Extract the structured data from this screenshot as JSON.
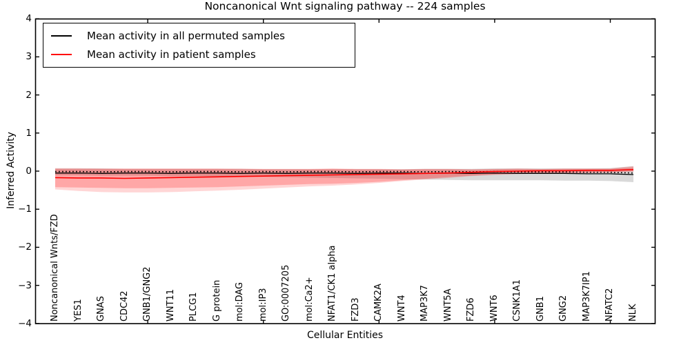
{
  "chart_data": {
    "type": "line",
    "title": "Noncanonical Wnt signaling pathway -- 224 samples",
    "xlabel": "Cellular Entities",
    "ylabel": "Inferred Activity",
    "ylim": [
      -4,
      4
    ],
    "grid": false,
    "legend_position": "upper left",
    "yticks": [
      4,
      3,
      2,
      1,
      0,
      -1,
      -2,
      -3,
      -4
    ],
    "yticklabels": [
      "4",
      "3",
      "2",
      "1",
      "0",
      "−1",
      "−2",
      "−3",
      "−4"
    ],
    "xtick_major_indices": [
      4,
      9,
      14,
      19,
      24
    ],
    "categories": [
      "Noncanonical Wnts/FZD",
      "YES1",
      "GNAS",
      "CDC42",
      "GNB1/GNG2",
      "WNT11",
      "PLCG1",
      "G protein",
      "mol:DAG",
      "mol:IP3",
      "GO:0007205",
      "mol:Ca2+",
      "NFAT1/CK1 alpha",
      "FZD3",
      "CAMK2A",
      "WNT4",
      "MAP3K7",
      "WNT5A",
      "FZD6",
      "WNT6",
      "CSNK1A1",
      "GNB1",
      "GNG2",
      "MAP3K7IP1",
      "NFATC2",
      "NLK"
    ],
    "legend": [
      {
        "label": "Mean activity in all permuted samples",
        "color": "#000000"
      },
      {
        "label": "Mean activity in patient samples",
        "color": "#ff0000"
      }
    ],
    "series": [
      {
        "name": "Mean activity in all permuted samples",
        "color": "#000000",
        "values": [
          -0.05,
          -0.05,
          -0.06,
          -0.05,
          -0.05,
          -0.06,
          -0.05,
          -0.05,
          -0.06,
          -0.05,
          -0.06,
          -0.05,
          -0.05,
          -0.06,
          -0.05,
          -0.05,
          -0.06,
          -0.05,
          -0.06,
          -0.05,
          -0.06,
          -0.06,
          -0.06,
          -0.07,
          -0.07,
          -0.09
        ]
      },
      {
        "name": "Mean activity in patient samples",
        "color": "#ff0000",
        "values": [
          -0.17,
          -0.18,
          -0.18,
          -0.19,
          -0.18,
          -0.17,
          -0.16,
          -0.15,
          -0.14,
          -0.13,
          -0.12,
          -0.11,
          -0.1,
          -0.09,
          -0.08,
          -0.07,
          -0.06,
          -0.05,
          -0.03,
          -0.01,
          0.0,
          0.01,
          0.01,
          0.02,
          0.02,
          0.04
        ]
      }
    ],
    "bands": [
      {
        "name": "permuted-std-band",
        "color": "rgba(0,0,0,0.15)",
        "upper": [
          0.07,
          0.07,
          0.07,
          0.06,
          0.06,
          0.06,
          0.06,
          0.06,
          0.06,
          0.05,
          0.05,
          0.05,
          0.05,
          0.05,
          0.05,
          0.05,
          0.06,
          0.06,
          0.06,
          0.07,
          0.07,
          0.07,
          0.07,
          0.07,
          0.08,
          0.13
        ],
        "lower": [
          -0.11,
          -0.11,
          -0.12,
          -0.12,
          -0.12,
          -0.13,
          -0.13,
          -0.14,
          -0.14,
          -0.15,
          -0.16,
          -0.17,
          -0.18,
          -0.19,
          -0.2,
          -0.21,
          -0.22,
          -0.23,
          -0.24,
          -0.24,
          -0.24,
          -0.24,
          -0.25,
          -0.25,
          -0.26,
          -0.29
        ]
      },
      {
        "name": "patient-std-band-outer",
        "color": "rgba(255,0,0,0.16)",
        "upper": [
          0.08,
          0.08,
          0.07,
          0.07,
          0.07,
          0.07,
          0.07,
          0.07,
          0.07,
          0.06,
          0.06,
          0.06,
          0.07,
          0.06,
          0.06,
          0.05,
          0.06,
          0.06,
          0.05,
          0.06,
          0.07,
          0.06,
          0.07,
          0.07,
          0.07,
          0.13
        ],
        "lower": [
          -0.48,
          -0.52,
          -0.55,
          -0.56,
          -0.56,
          -0.55,
          -0.53,
          -0.51,
          -0.49,
          -0.46,
          -0.43,
          -0.4,
          -0.38,
          -0.35,
          -0.31,
          -0.26,
          -0.22,
          -0.18,
          -0.13,
          -0.1,
          -0.08,
          -0.06,
          -0.06,
          -0.05,
          -0.04,
          -0.02
        ]
      },
      {
        "name": "patient-std-band-inner",
        "color": "rgba(255,0,0,0.22)",
        "upper": [
          0.06,
          0.06,
          0.06,
          0.06,
          0.06,
          0.06,
          0.06,
          0.06,
          0.05,
          0.05,
          0.05,
          0.05,
          0.06,
          0.05,
          0.05,
          0.04,
          0.05,
          0.05,
          0.04,
          0.05,
          0.06,
          0.05,
          0.06,
          0.06,
          0.06,
          0.1
        ],
        "lower": [
          -0.42,
          -0.43,
          -0.44,
          -0.45,
          -0.45,
          -0.44,
          -0.43,
          -0.42,
          -0.4,
          -0.38,
          -0.36,
          -0.34,
          -0.33,
          -0.31,
          -0.28,
          -0.24,
          -0.2,
          -0.16,
          -0.12,
          -0.09,
          -0.07,
          -0.05,
          -0.05,
          -0.04,
          -0.03,
          0.0
        ]
      }
    ]
  }
}
